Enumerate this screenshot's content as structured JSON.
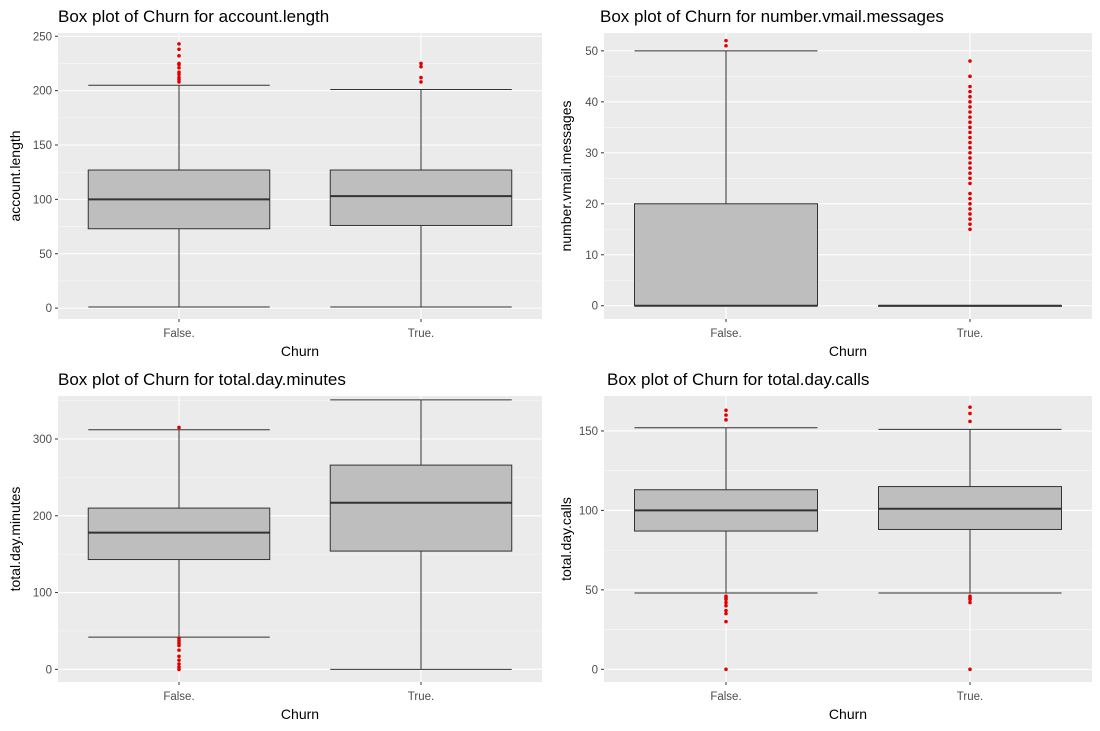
{
  "colors": {
    "panel_background": "#ebebeb",
    "grid_major": "#ffffff",
    "box_fill": "#bebebe",
    "box_stroke": "#333333",
    "outlier": "#e00000",
    "tick_text": "#4d4d4d"
  },
  "chart_data": [
    {
      "type": "box",
      "title": "Box plot of Churn for account.length",
      "xlabel": "Churn",
      "ylabel": "account.length",
      "categories": [
        "False.",
        "True."
      ],
      "ylim": [
        -10,
        253
      ],
      "yticks": [
        0,
        50,
        100,
        150,
        200,
        250
      ],
      "ytick_labels": [
        "0",
        "50",
        "100",
        "150",
        "200",
        "250"
      ],
      "grid": true,
      "boxes": [
        {
          "category": "False.",
          "whisker_low": 1,
          "q1": 73,
          "median": 100,
          "q3": 127,
          "whisker_high": 205,
          "outliers": [
            208,
            210,
            212,
            215,
            217,
            221,
            224,
            225,
            232,
            238,
            243
          ]
        },
        {
          "category": "True.",
          "whisker_low": 1,
          "q1": 76,
          "median": 103,
          "q3": 127,
          "whisker_high": 201,
          "outliers": [
            208,
            212,
            222,
            225
          ]
        }
      ]
    },
    {
      "type": "box",
      "title": "Box plot of Churn for number.vmail.messages",
      "xlabel": "Churn",
      "ylabel": "number.vmail.messages",
      "categories": [
        "False.",
        "True."
      ],
      "ylim": [
        -2.6,
        53.5
      ],
      "yticks": [
        0,
        10,
        20,
        30,
        40,
        50
      ],
      "ytick_labels": [
        "0",
        "10",
        "20",
        "30",
        "40",
        "50"
      ],
      "grid": true,
      "boxes": [
        {
          "category": "False.",
          "whisker_low": 0,
          "q1": 0,
          "median": 0,
          "q3": 20,
          "whisker_high": 50,
          "outliers": [
            51,
            52
          ]
        },
        {
          "category": "True.",
          "whisker_low": 0,
          "q1": 0,
          "median": 0,
          "q3": 0,
          "whisker_high": 0,
          "outliers": [
            15,
            16,
            17,
            18,
            19,
            20,
            21,
            22,
            24,
            25,
            26,
            27,
            28,
            29,
            30,
            31,
            32,
            33,
            34,
            35,
            36,
            37,
            38,
            39,
            40,
            41,
            42,
            43,
            45,
            48
          ]
        }
      ]
    },
    {
      "type": "box",
      "title": "Box plot of Churn for total.day.minutes",
      "xlabel": "Churn",
      "ylabel": "total.day.minutes",
      "categories": [
        "False.",
        "True."
      ],
      "ylim": [
        -16.5,
        356
      ],
      "yticks": [
        0,
        100,
        200,
        300
      ],
      "ytick_labels": [
        "0",
        "100",
        "200",
        "300"
      ],
      "grid": true,
      "boxes": [
        {
          "category": "False.",
          "whisker_low": 42,
          "q1": 143,
          "median": 178,
          "q3": 210,
          "whisker_high": 312,
          "outliers": [
            0,
            3,
            7,
            12,
            17,
            25,
            31,
            34,
            37,
            40,
            315
          ]
        },
        {
          "category": "True.",
          "whisker_low": 0,
          "q1": 154,
          "median": 217,
          "q3": 266,
          "whisker_high": 351,
          "outliers": []
        }
      ]
    },
    {
      "type": "box",
      "title": "Box plot of Churn for total.day.calls",
      "xlabel": "Churn",
      "ylabel": "total.day.calls",
      "categories": [
        "False.",
        "True."
      ],
      "ylim": [
        -8,
        172
      ],
      "yticks": [
        0,
        50,
        100,
        150
      ],
      "ytick_labels": [
        "0",
        "50",
        "100",
        "150"
      ],
      "grid": true,
      "boxes": [
        {
          "category": "False.",
          "whisker_low": 48,
          "q1": 87,
          "median": 100,
          "q3": 113,
          "whisker_high": 152,
          "outliers": [
            0,
            30,
            35,
            37,
            40,
            42,
            44,
            45,
            46,
            157,
            160,
            163
          ]
        },
        {
          "category": "True.",
          "whisker_low": 48,
          "q1": 88,
          "median": 101,
          "q3": 115,
          "whisker_high": 151,
          "outliers": [
            0,
            42,
            44,
            45,
            46,
            156,
            161,
            165
          ]
        }
      ]
    }
  ]
}
